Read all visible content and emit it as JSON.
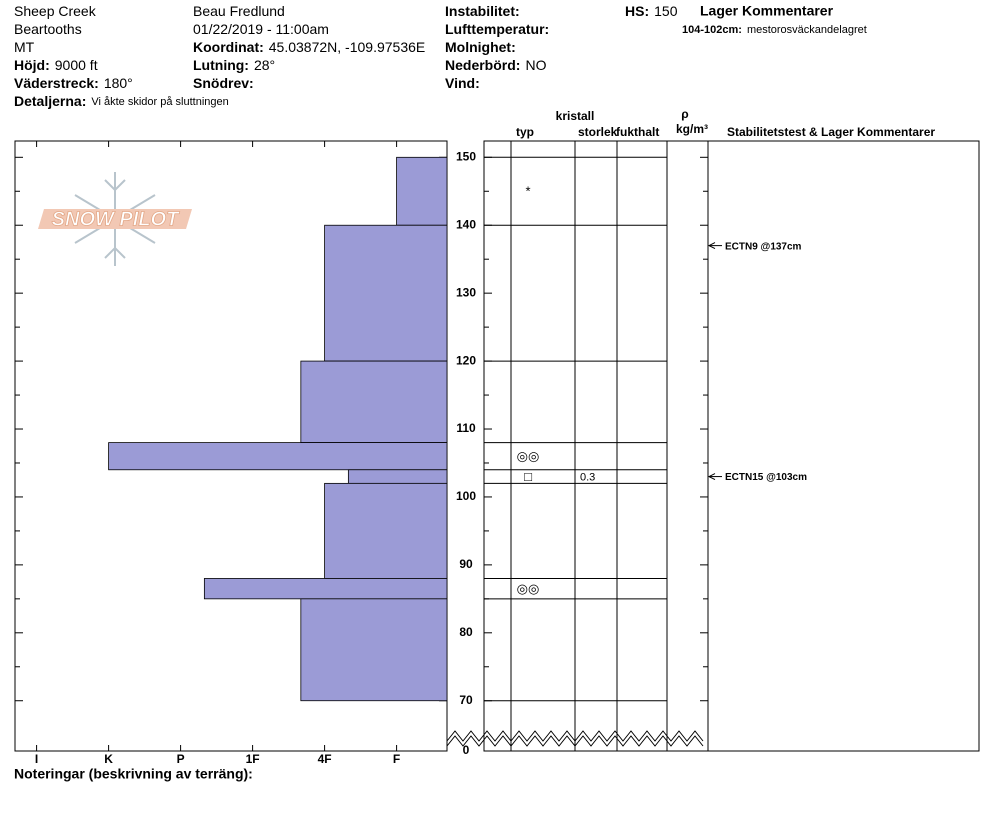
{
  "header": {
    "col1": [
      {
        "value": "Sheep Creek"
      },
      {
        "value": "Beartooths"
      },
      {
        "value": "MT"
      },
      {
        "label": "Höjd:",
        "value": "9000 ft"
      },
      {
        "label": "Väderstreck:",
        "value": "180°"
      },
      {
        "label": "Detaljerna:",
        "value": "Vi åkte skidor på sluttningen"
      }
    ],
    "col2": [
      {
        "value": "Beau  Fredlund"
      },
      {
        "value": "01/22/2019 - 11:00am"
      },
      {
        "label": "Koordinat:",
        "value": "45.03872N, -109.97536E"
      },
      {
        "label": "Lutning:",
        "value": "28°"
      },
      {
        "label": "Snödrev:"
      }
    ],
    "col3": [
      {
        "label": "Instabilitet:"
      },
      {
        "label": "Lufttemperatur:"
      },
      {
        "label": "Molnighet:"
      },
      {
        "label": "Nederbörd:",
        "value": "NO"
      },
      {
        "label": "Vind:"
      }
    ],
    "hs": {
      "label": "HS:",
      "value": 150
    },
    "layer_comments": {
      "title": "Lager Kommentarer",
      "items": [
        {
          "label": "104-102cm:",
          "value": "mestorosväckandelagret"
        }
      ]
    }
  },
  "logo_text": "SNOW PILOT",
  "chart_data": {
    "type": "bar",
    "orientation": "horizontal",
    "xlim": [
      6.3,
      0.3
    ],
    "xticks": [
      {
        "value": 6,
        "label": "I"
      },
      {
        "value": 5,
        "label": "K"
      },
      {
        "value": 4,
        "label": "P"
      },
      {
        "value": 3,
        "label": "1F"
      },
      {
        "value": 2,
        "label": "4F"
      },
      {
        "value": 1,
        "label": "F"
      }
    ],
    "ylim": [
      62.6,
      152.4
    ],
    "yticks": [
      0,
      70,
      80,
      90,
      100,
      110,
      120,
      130,
      140,
      150
    ],
    "yticks_minor": [
      75,
      85,
      95,
      105,
      115,
      125,
      135,
      145
    ],
    "axis_break": true,
    "color": "#9b9bd6",
    "layers": [
      {
        "top": 150,
        "bottom": 140,
        "hardness": 1,
        "grain": "*"
      },
      {
        "top": 140,
        "bottom": 120,
        "hardness": 2
      },
      {
        "top": 120,
        "bottom": 108,
        "hardness": 2.33
      },
      {
        "top": 108,
        "bottom": 104,
        "hardness": 5,
        "grain": "◎◎"
      },
      {
        "top": 104,
        "bottom": 102,
        "hardness": 1.67,
        "grain": "□",
        "size": 0.3
      },
      {
        "top": 102,
        "bottom": 88,
        "hardness": 2
      },
      {
        "top": 88,
        "bottom": 85,
        "hardness": 3.67,
        "grain": "◎◎"
      },
      {
        "top": 85,
        "bottom": 70,
        "hardness": 2.33
      }
    ],
    "columns": {
      "crystal": "kristall",
      "type": "typ",
      "size": "storlek",
      "moisture": "fukthalt",
      "rho": "ρ",
      "density_unit": "kg/m³",
      "comments": "Stabilitetstest & Lager Kommentarer"
    },
    "tests": [
      {
        "label": "ECTN9 @137cm",
        "depth": 137
      },
      {
        "label": "ECTN15 @103cm",
        "depth": 103
      }
    ],
    "footer": "Noteringar (beskrivning av terräng):"
  }
}
